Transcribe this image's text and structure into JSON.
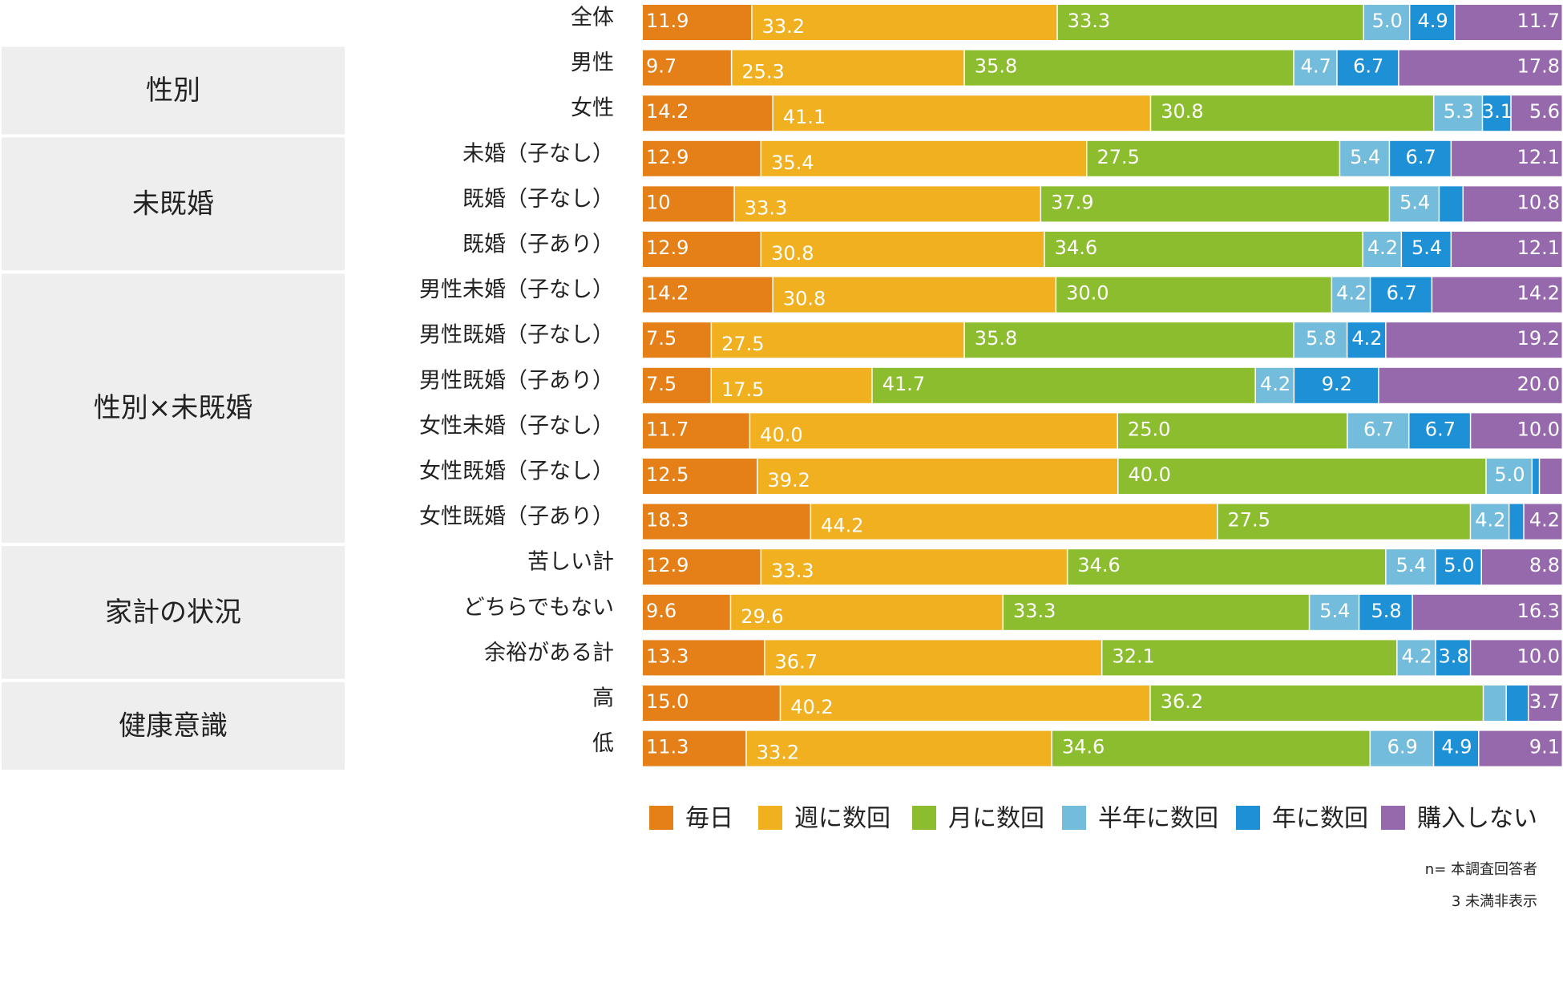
{
  "chart_data": {
    "type": "bar",
    "orientation": "horizontal",
    "stacked": "percent",
    "title": "",
    "xlabel": "",
    "ylabel": "",
    "legend_position": "bottom",
    "series": [
      {
        "name": "毎日",
        "color": "#e57f17"
      },
      {
        "name": "週に数回",
        "color": "#f0b020"
      },
      {
        "name": "月に数回",
        "color": "#8cbd2e"
      },
      {
        "name": "半年に数回",
        "color": "#74bcdb"
      },
      {
        "name": "年に数回",
        "color": "#1e90d6"
      },
      {
        "name": "購入しない",
        "color": "#9569ab"
      }
    ],
    "groups": [
      {
        "label": "",
        "rows": [
          0
        ]
      },
      {
        "label": "性別",
        "rows": [
          1,
          2
        ]
      },
      {
        "label": "未既婚",
        "rows": [
          3,
          4,
          5
        ]
      },
      {
        "label": "性別×未既婚",
        "rows": [
          6,
          7,
          8,
          9,
          10,
          11
        ]
      },
      {
        "label": "家計の状況",
        "rows": [
          12,
          13,
          14
        ]
      },
      {
        "label": "健康意識",
        "rows": [
          15,
          16
        ]
      }
    ],
    "rows": [
      {
        "label": "全体",
        "values": [
          11.9,
          33.2,
          33.3,
          5.0,
          4.9,
          11.7
        ],
        "labels": [
          "11.9",
          "33.2",
          "33.3",
          "5.0",
          "4.9",
          "11.7"
        ]
      },
      {
        "label": "男性",
        "values": [
          9.7,
          25.3,
          35.8,
          4.7,
          6.7,
          17.8
        ],
        "labels": [
          "9.7",
          "25.3",
          "35.8",
          "4.7",
          "6.7",
          "17.8"
        ]
      },
      {
        "label": "女性",
        "values": [
          14.2,
          41.1,
          30.8,
          5.3,
          3.1,
          5.6
        ],
        "labels": [
          "14.2",
          "41.1",
          "30.8",
          "5.3",
          "3.1",
          "5.6"
        ]
      },
      {
        "label": "未婚（子なし）",
        "values": [
          12.9,
          35.4,
          27.5,
          5.4,
          6.7,
          12.1
        ],
        "labels": [
          "12.9",
          "35.4",
          "27.5",
          "5.4",
          "6.7",
          "12.1"
        ]
      },
      {
        "label": "既婚（子なし）",
        "values": [
          10,
          33.3,
          37.9,
          5.4,
          2.6,
          10.8
        ],
        "labels": [
          "10",
          "33.3",
          "37.9",
          "5.4",
          "",
          "10.8"
        ]
      },
      {
        "label": "既婚（子あり）",
        "values": [
          12.9,
          30.8,
          34.6,
          4.2,
          5.4,
          12.1
        ],
        "labels": [
          "12.9",
          "30.8",
          "34.6",
          "4.2",
          "5.4",
          "12.1"
        ]
      },
      {
        "label": "男性未婚（子なし）",
        "values": [
          14.2,
          30.8,
          30.0,
          4.2,
          6.7,
          14.2
        ],
        "labels": [
          "14.2",
          "30.8",
          "30.0",
          "4.2",
          "6.7",
          "14.2"
        ]
      },
      {
        "label": "男性既婚（子なし）",
        "values": [
          7.5,
          27.5,
          35.8,
          5.8,
          4.2,
          19.2
        ],
        "labels": [
          "7.5",
          "27.5",
          "35.8",
          "5.8",
          "4.2",
          "19.2"
        ]
      },
      {
        "label": "男性既婚（子あり）",
        "values": [
          7.5,
          17.5,
          41.7,
          4.2,
          9.2,
          20.0
        ],
        "labels": [
          "7.5",
          "17.5",
          "41.7",
          "4.2",
          "9.2",
          "20.0"
        ]
      },
      {
        "label": "女性未婚（子なし）",
        "values": [
          11.7,
          40.0,
          25.0,
          6.7,
          6.7,
          10.0
        ],
        "labels": [
          "11.7",
          "40.0",
          "25.0",
          "6.7",
          "6.7",
          "10.0"
        ]
      },
      {
        "label": "女性既婚（子なし）",
        "values": [
          12.5,
          39.2,
          40.0,
          5.0,
          0.8,
          2.5
        ],
        "labels": [
          "12.5",
          "39.2",
          "40.0",
          "5.0",
          "",
          ""
        ]
      },
      {
        "label": "女性既婚（子あり）",
        "values": [
          18.3,
          44.2,
          27.5,
          4.2,
          1.6,
          4.2
        ],
        "labels": [
          "18.3",
          "44.2",
          "27.5",
          "4.2",
          "",
          "4.2"
        ]
      },
      {
        "label": "苦しい計",
        "values": [
          12.9,
          33.3,
          34.6,
          5.4,
          5.0,
          8.8
        ],
        "labels": [
          "12.9",
          "33.3",
          "34.6",
          "5.4",
          "5.0",
          "8.8"
        ]
      },
      {
        "label": "どちらでもない",
        "values": [
          9.6,
          29.6,
          33.3,
          5.4,
          5.8,
          16.3
        ],
        "labels": [
          "9.6",
          "29.6",
          "33.3",
          "5.4",
          "5.8",
          "16.3"
        ]
      },
      {
        "label": "余裕がある計",
        "values": [
          13.3,
          36.7,
          32.1,
          4.2,
          3.8,
          10.0
        ],
        "labels": [
          "13.3",
          "36.7",
          "32.1",
          "4.2",
          "3.8",
          "10.0"
        ]
      },
      {
        "label": "高",
        "values": [
          15.0,
          40.2,
          36.2,
          2.5,
          2.4,
          3.7
        ],
        "labels": [
          "15.0",
          "40.2",
          "36.2",
          "",
          "",
          "3.7"
        ]
      },
      {
        "label": "低",
        "values": [
          11.3,
          33.2,
          34.6,
          6.9,
          4.9,
          9.1
        ],
        "labels": [
          "11.3",
          "33.2",
          "34.6",
          "6.9",
          "4.9",
          "9.1"
        ]
      }
    ],
    "notes": [
      "n= 本調査回答者",
      "3 未満非表示"
    ]
  }
}
